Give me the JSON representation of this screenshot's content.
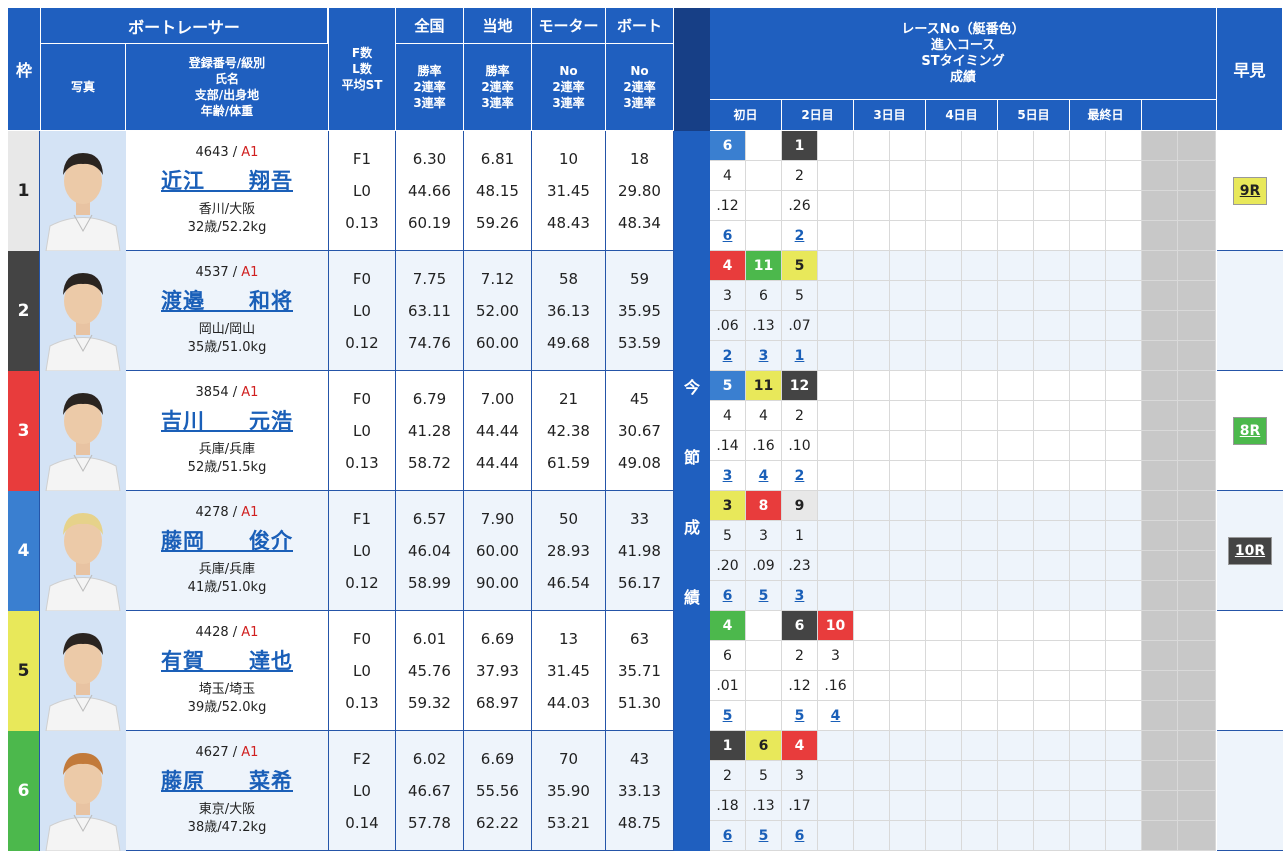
{
  "header": {
    "waku": "枠",
    "racer": "ボートレーサー",
    "photo": "写真",
    "info": [
      "登録番号/級別",
      "氏名",
      "支部/出身地",
      "年齢/体重"
    ],
    "fl": [
      "F数",
      "L数",
      "平均ST"
    ],
    "national": "全国",
    "local": "当地",
    "motor": "モーター",
    "boat": "ボート",
    "rate": [
      "勝率",
      "2連率",
      "3連率"
    ],
    "no": [
      "No",
      "2連率",
      "3連率"
    ],
    "series": [
      "レースNo（艇番色）",
      "進入コース",
      "STタイミング",
      "成績"
    ],
    "days": [
      "初日",
      "2日目",
      "3日目",
      "4日目",
      "5日目",
      "最終日"
    ],
    "fast": "早見",
    "vertical": [
      "今",
      "節",
      "成",
      "績"
    ]
  },
  "colors": {
    "w1": "#e8e8e8",
    "w2": "#444444",
    "w3": "#e83c3c",
    "w4": "#3a7fd0",
    "w5": "#e8e85a",
    "w6": "#4cb84c"
  },
  "racers": [
    {
      "waku": "1",
      "reg": "4643 /",
      "cls": "A1",
      "name": "近江　　翔吾",
      "branch": "香川/大阪",
      "age": "32歳/52.2kg",
      "fl": [
        "F1",
        "L0",
        "0.13"
      ],
      "nat": [
        "6.30",
        "44.66",
        "60.19"
      ],
      "loc": [
        "6.81",
        "48.15",
        "59.26"
      ],
      "mot": [
        "10",
        "31.45",
        "48.43"
      ],
      "boat": [
        "18",
        "29.80",
        "48.34"
      ],
      "races": [
        {
          "no": "6",
          "c": "w4",
          "course": "4",
          "st": ".12",
          "res": "6"
        },
        {
          "no": "",
          "c": "",
          "course": "",
          "st": "",
          "res": ""
        },
        {
          "no": "1",
          "c": "w2",
          "course": "2",
          "st": ".26",
          "res": "2"
        }
      ],
      "fast": "9R",
      "fastc": "w5"
    },
    {
      "waku": "2",
      "reg": "4537 /",
      "cls": "A1",
      "name": "渡邉　　和将",
      "branch": "岡山/岡山",
      "age": "35歳/51.0kg",
      "fl": [
        "F0",
        "L0",
        "0.12"
      ],
      "nat": [
        "7.75",
        "63.11",
        "74.76"
      ],
      "loc": [
        "7.12",
        "52.00",
        "60.00"
      ],
      "mot": [
        "58",
        "36.13",
        "49.68"
      ],
      "boat": [
        "59",
        "35.95",
        "53.59"
      ],
      "races": [
        {
          "no": "4",
          "c": "w3",
          "course": "3",
          "st": ".06",
          "res": "2"
        },
        {
          "no": "11",
          "c": "w6",
          "course": "6",
          "st": ".13",
          "res": "3"
        },
        {
          "no": "5",
          "c": "w5",
          "course": "5",
          "st": ".07",
          "res": "1"
        }
      ],
      "fast": "",
      "fastc": ""
    },
    {
      "waku": "3",
      "reg": "3854 /",
      "cls": "A1",
      "name": "吉川　　元浩",
      "branch": "兵庫/兵庫",
      "age": "52歳/51.5kg",
      "fl": [
        "F0",
        "L0",
        "0.13"
      ],
      "nat": [
        "6.79",
        "41.28",
        "58.72"
      ],
      "loc": [
        "7.00",
        "44.44",
        "44.44"
      ],
      "mot": [
        "21",
        "42.38",
        "61.59"
      ],
      "boat": [
        "45",
        "30.67",
        "49.08"
      ],
      "races": [
        {
          "no": "5",
          "c": "w4",
          "course": "4",
          "st": ".14",
          "res": "3"
        },
        {
          "no": "11",
          "c": "w5",
          "course": "4",
          "st": ".16",
          "res": "4"
        },
        {
          "no": "12",
          "c": "w2",
          "course": "2",
          "st": ".10",
          "res": "2"
        }
      ],
      "fast": "8R",
      "fastc": "w6"
    },
    {
      "waku": "4",
      "reg": "4278 /",
      "cls": "A1",
      "name": "藤岡　　俊介",
      "branch": "兵庫/兵庫",
      "age": "41歳/51.0kg",
      "fl": [
        "F1",
        "L0",
        "0.12"
      ],
      "nat": [
        "6.57",
        "46.04",
        "58.99"
      ],
      "loc": [
        "7.90",
        "60.00",
        "90.00"
      ],
      "mot": [
        "50",
        "28.93",
        "46.54"
      ],
      "boat": [
        "33",
        "41.98",
        "56.17"
      ],
      "races": [
        {
          "no": "3",
          "c": "w5",
          "course": "5",
          "st": ".20",
          "res": "6"
        },
        {
          "no": "8",
          "c": "w3",
          "course": "3",
          "st": ".09",
          "res": "5"
        },
        {
          "no": "9",
          "c": "w1",
          "course": "1",
          "st": ".23",
          "res": "3"
        }
      ],
      "fast": "10R",
      "fastc": "w2"
    },
    {
      "waku": "5",
      "reg": "4428 /",
      "cls": "A1",
      "name": "有賀　　達也",
      "branch": "埼玉/埼玉",
      "age": "39歳/52.0kg",
      "fl": [
        "F0",
        "L0",
        "0.13"
      ],
      "nat": [
        "6.01",
        "45.76",
        "59.32"
      ],
      "loc": [
        "6.69",
        "37.93",
        "68.97"
      ],
      "mot": [
        "13",
        "31.45",
        "44.03"
      ],
      "boat": [
        "63",
        "35.71",
        "51.30"
      ],
      "races": [
        {
          "no": "4",
          "c": "w6",
          "course": "6",
          "st": ".01",
          "res": "5"
        },
        {
          "no": "",
          "c": "",
          "course": "",
          "st": "",
          "res": ""
        },
        {
          "no": "6",
          "c": "w2",
          "course": "2",
          "st": ".12",
          "res": "5"
        },
        {
          "no": "10",
          "c": "w3",
          "course": "3",
          "st": ".16",
          "res": "4"
        }
      ],
      "fast": "",
      "fastc": ""
    },
    {
      "waku": "6",
      "reg": "4627 /",
      "cls": "A1",
      "name": "藤原　　菜希",
      "branch": "東京/大阪",
      "age": "38歳/47.2kg",
      "fl": [
        "F2",
        "L0",
        "0.14"
      ],
      "nat": [
        "6.02",
        "46.67",
        "57.78"
      ],
      "loc": [
        "6.69",
        "55.56",
        "62.22"
      ],
      "mot": [
        "70",
        "35.90",
        "53.21"
      ],
      "boat": [
        "43",
        "33.13",
        "48.75"
      ],
      "races": [
        {
          "no": "1",
          "c": "w2",
          "course": "2",
          "st": ".18",
          "res": "6"
        },
        {
          "no": "6",
          "c": "w5",
          "course": "5",
          "st": ".13",
          "res": "5"
        },
        {
          "no": "4",
          "c": "w3",
          "course": "3",
          "st": ".17",
          "res": "6"
        }
      ],
      "fast": "",
      "fastc": ""
    }
  ]
}
